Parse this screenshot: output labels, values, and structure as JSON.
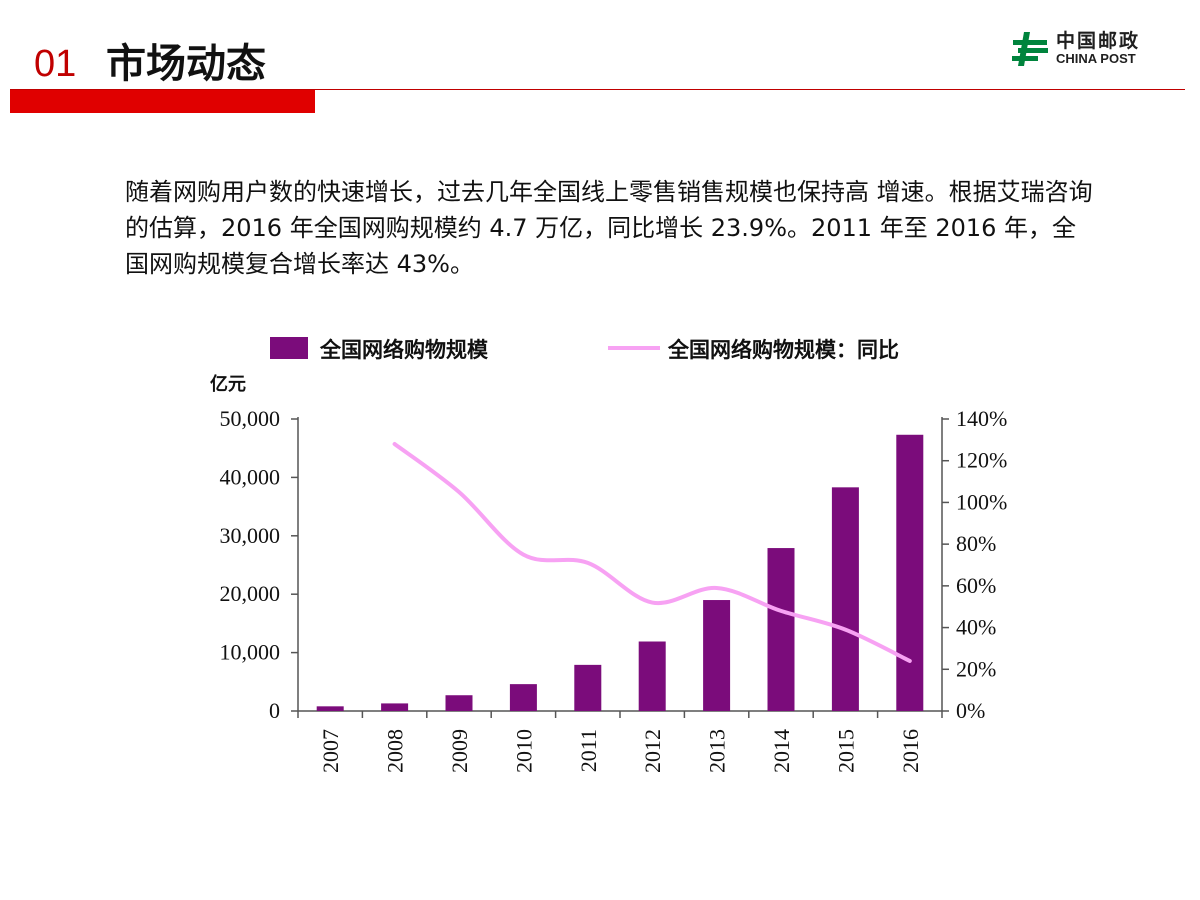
{
  "header": {
    "number": "01",
    "title": "市场动态",
    "accent_color": "#c00000"
  },
  "logo": {
    "name_cn": "中国邮政",
    "name_en": "CHINA POST",
    "icon": "china-post-logo-icon",
    "color": "#00843d"
  },
  "body": {
    "paragraph": "随着网购用户数的快速增长，过去几年全国线上零售销售规模也保持高 增速。根据艾瑞咨询的估算，2016 年全国网购规模约 4.7 万亿，同比增长 23.9%。2011 年至 2016 年，全国网购规模复合增长率达 43%。"
  },
  "chart_data": {
    "type": "bar",
    "categories": [
      "2007",
      "2008",
      "2009",
      "2010",
      "2011",
      "2012",
      "2013",
      "2014",
      "2015",
      "2016"
    ],
    "series": [
      {
        "name": "全国网络购物规模",
        "kind": "bar",
        "axis": "left",
        "color": "#7b0c7b",
        "values": [
          800,
          1300,
          2700,
          4600,
          7900,
          11900,
          19000,
          27900,
          38300,
          47300
        ]
      },
      {
        "name": "全国网络购物规模：同比",
        "kind": "line",
        "axis": "right",
        "color": "#f7a2f3",
        "values": [
          null,
          128,
          105,
          75,
          71,
          52,
          59,
          48,
          39,
          24
        ]
      }
    ],
    "y_left": {
      "unit": "亿元",
      "range": [
        0,
        50000
      ],
      "ticks": [
        "0",
        "10,000",
        "20,000",
        "30,000",
        "40,000",
        "50,000"
      ]
    },
    "y_right": {
      "range": [
        0,
        140
      ],
      "ticks": [
        "0%",
        "20%",
        "40%",
        "60%",
        "80%",
        "100%",
        "120%",
        "140%"
      ]
    },
    "legend_position": "top",
    "grid": false
  }
}
